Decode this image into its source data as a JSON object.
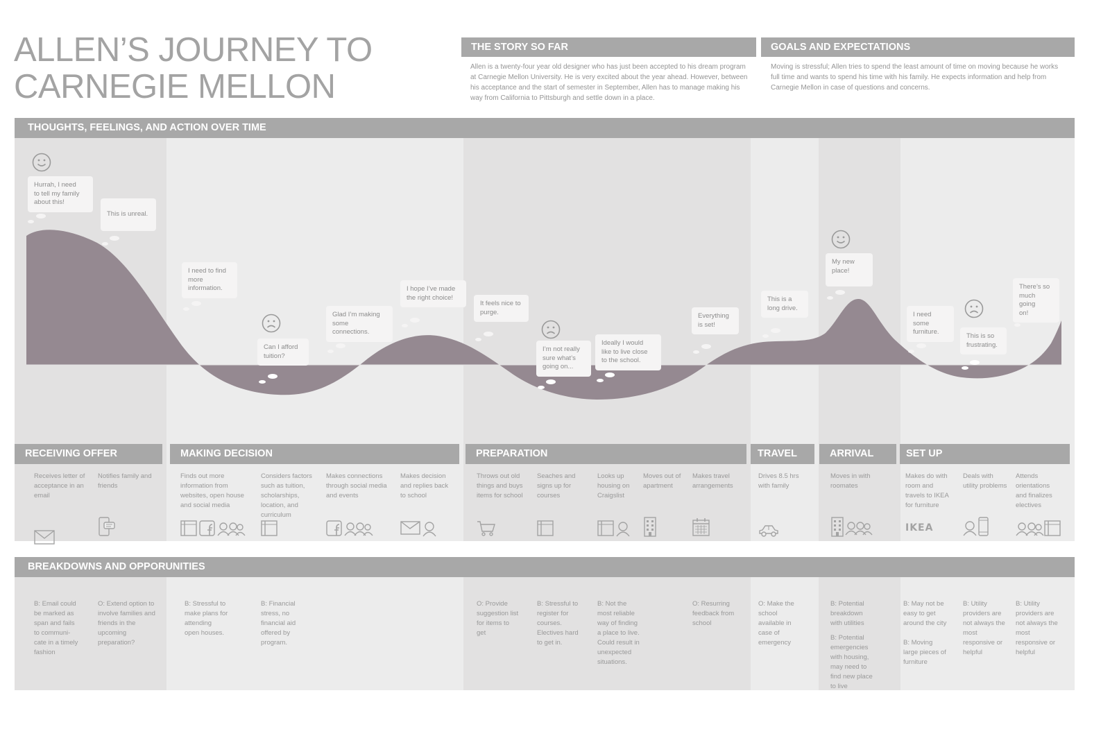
{
  "title": {
    "line1": "ALLEN’S JOURNEY TO",
    "line2": "CARNEGIE MELLON"
  },
  "story": {
    "heading": "THE STORY SO FAR",
    "lines": [
      "Allen is a twenty-four year old designer who has just been accepted to his dream program",
      "at Carnegie Mellon University. He is very excited about the year ahead. However, between",
      "his acceptance and the start of semester in September, Allen has to manage making his",
      "way from California to Pittsburgh and settle down in a place."
    ]
  },
  "goals": {
    "heading": "GOALS AND EXPECTATIONS",
    "lines": [
      "Moving is stressful; Allen tries to spend the least amount of time on moving because he works",
      "full time and wants to spend his time with his family. He expects information and help from",
      "Carnegie Mellon in case of questions and concerns."
    ]
  },
  "timeline_heading": "THOUGHTS, FEELINGS, AND ACTION OVER TIME",
  "breakdowns_heading": "BREAKDOWNS AND OPPORUNITIES",
  "stages": [
    {
      "label": "RECEIVING OFFER"
    },
    {
      "label": "MAKING DECISION"
    },
    {
      "label": "PREPARATION"
    },
    {
      "label": "TRAVEL"
    },
    {
      "label": "ARRIVAL"
    },
    {
      "label": "SET UP"
    }
  ],
  "thoughts": [
    {
      "lines": [
        "Hurrah, I need",
        "to tell my family",
        "about this!"
      ]
    },
    {
      "lines": [
        "This is unreal."
      ]
    },
    {
      "lines": [
        "I need to find",
        "more",
        "information."
      ]
    },
    {
      "lines": [
        "Can I afford",
        "tuition?"
      ]
    },
    {
      "lines": [
        "Glad I’m making",
        "some",
        "connections."
      ]
    },
    {
      "lines": [
        "I hope I’ve made",
        "the right choice!"
      ]
    },
    {
      "lines": [
        "It feels nice to",
        "purge."
      ]
    },
    {
      "lines": [
        "I’m not really",
        "sure what’s",
        "going on..."
      ]
    },
    {
      "lines": [
        "Ideally I would",
        "like to live close",
        "to the school."
      ]
    },
    {
      "lines": [
        "Everything",
        "is set!"
      ]
    },
    {
      "lines": [
        "This is a",
        "long drive."
      ]
    },
    {
      "lines": [
        "My new",
        "place!"
      ]
    },
    {
      "lines": [
        "I need some",
        "furniture."
      ]
    },
    {
      "lines": [
        "This is so",
        "frustrating."
      ]
    },
    {
      "lines": [
        "There’s so",
        "much going",
        "on!"
      ]
    }
  ],
  "faces": [
    {
      "mood": "happy-face-icon"
    },
    {
      "mood": "sad-face-icon"
    },
    {
      "mood": "sad-face-icon"
    },
    {
      "mood": "happy-face-icon"
    },
    {
      "mood": "sad-face-icon"
    }
  ],
  "actions": [
    {
      "lines": [
        "Receives letter of",
        "acceptance in an",
        "email"
      ],
      "icons": [
        "envelope-icon"
      ]
    },
    {
      "lines": [
        "Notifies family and",
        "friends"
      ],
      "icons": [
        "phone-chat-icon"
      ]
    },
    {
      "lines": [
        "Finds out more",
        "information from",
        "websites, open house",
        "and social media"
      ],
      "icons": [
        "book-icon",
        "facebook-icon",
        "people-icon"
      ]
    },
    {
      "lines": [
        "Considers factors",
        "such as tuition,",
        "scholarships,",
        "location, and",
        "curriculum"
      ],
      "icons": [
        "book-icon"
      ]
    },
    {
      "lines": [
        "Makes connections",
        "through social media",
        "and events"
      ],
      "icons": [
        "facebook-icon",
        "people-icon"
      ]
    },
    {
      "lines": [
        "Makes decision",
        "and replies back",
        "to school"
      ],
      "icons": [
        "envelope-icon",
        "person-icon"
      ]
    },
    {
      "lines": [
        "Throws out old",
        "things and buys",
        "items for school"
      ],
      "icons": [
        "cart-icon"
      ]
    },
    {
      "lines": [
        "Seaches and",
        "signs up for",
        "courses"
      ],
      "icons": [
        "book-icon"
      ]
    },
    {
      "lines": [
        "Looks up",
        "housing on",
        "Craigslist"
      ],
      "icons": [
        "book-icon",
        "person-icon"
      ]
    },
    {
      "lines": [
        "Moves out of",
        "apartment"
      ],
      "icons": [
        "building-icon"
      ]
    },
    {
      "lines": [
        "Makes travel",
        "arrangements"
      ],
      "icons": [
        "calendar-icon"
      ]
    },
    {
      "lines": [
        "Drives 8.5 hrs",
        "with family"
      ],
      "icons": [
        "car-icon"
      ]
    },
    {
      "lines": [
        "Moves in with",
        "roomates"
      ],
      "icons": [
        "building-icon",
        "people-icon"
      ]
    },
    {
      "lines": [
        "Makes do with",
        "room and",
        "travels to IKEA",
        "for furniture"
      ],
      "icons": [
        "ikea-logo"
      ]
    },
    {
      "lines": [
        "Deals with",
        "utility problems"
      ],
      "icons": [
        "person-icon",
        "phone-icon"
      ]
    },
    {
      "lines": [
        "Attends",
        "orientations",
        "and finalizes",
        "electives"
      ],
      "icons": [
        "people-icon",
        "book-icon"
      ]
    }
  ],
  "ikea_text": "IKEA",
  "breakdowns": [
    {
      "lines": [
        "B: Email could",
        "be marked as",
        "span and fails",
        "to communi-",
        "cate in a timely",
        "fashion"
      ]
    },
    {
      "lines": [
        "O: Extend option to",
        "involve families and",
        "friends in the",
        "upcoming",
        "preparation?"
      ]
    },
    {
      "lines": [
        "B: Stressful to",
        "make plans for",
        "attending",
        "open houses."
      ]
    },
    {
      "lines": [
        "B: Financial",
        "stress, no",
        "financial aid",
        "offered by",
        "program."
      ]
    },
    {
      "lines": [
        "O: Provide",
        "suggestion list",
        "for items to",
        "get"
      ]
    },
    {
      "lines": [
        "B: Stressful to",
        "register for",
        "courses.",
        "Electives hard",
        "to get in."
      ]
    },
    {
      "lines": [
        "B: Not the",
        "most reliable",
        "way of finding",
        "a place to live.",
        "Could result in",
        "unexpected",
        "situations."
      ]
    },
    {
      "lines": [
        "O: Resurring",
        "feedback from",
        "school"
      ]
    },
    {
      "lines": [
        "O: Make the",
        "school",
        "available in",
        "case of",
        "emergency"
      ]
    },
    {
      "lines": [
        "B: Potential",
        "breakdown",
        "with utilities",
        "",
        "B: Potential",
        "emergencies",
        "with housing,",
        "may need to",
        "find new place",
        "to live"
      ]
    },
    {
      "lines": [
        "B: May not be",
        "easy to get",
        "around the city",
        "",
        "B: Moving",
        "large pieces of",
        "furniture"
      ]
    },
    {
      "lines": [
        "B: Utility",
        "providers are",
        "not always the",
        "most",
        "responsive or",
        "helpful"
      ]
    },
    {
      "lines": [
        "B: Utility",
        "providers are",
        "not always the",
        "most",
        "responsive or",
        "helpful"
      ]
    }
  ],
  "colors": {
    "header_gray": "#a8a8a8",
    "band_dark": "#e2e1e1",
    "band_light": "#ececec",
    "emotion_curve": "#958991",
    "bubble": "#f5f4f4"
  }
}
